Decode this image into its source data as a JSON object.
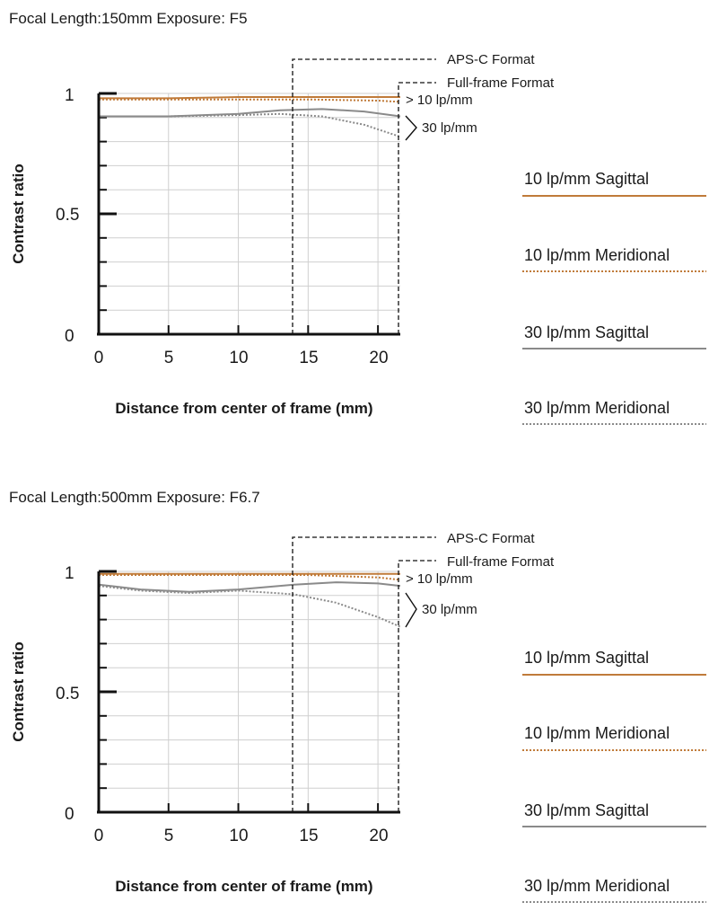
{
  "charts": [
    {
      "title": "Focal Length:150mm  Exposure: F5",
      "chart_data": {
        "type": "line",
        "xlabel": "Distance from center of frame (mm)",
        "ylabel": "Contrast ratio",
        "xlim": [
          0,
          21.6
        ],
        "ylim": [
          0,
          1
        ],
        "x_ticks": [
          "0",
          "5",
          "10",
          "15",
          "20"
        ],
        "y_ticks": [
          "0",
          "0.5",
          "1"
        ],
        "grid": true,
        "series": [
          {
            "name": "10 lp/mm Sagittal",
            "x": [
              0,
              5,
              10,
              15,
              20,
              21.6
            ],
            "values": [
              0.98,
              0.98,
              0.985,
              0.985,
              0.985,
              0.985
            ]
          },
          {
            "name": "10 lp/mm Meridional",
            "x": [
              0,
              5,
              10,
              15,
              20,
              21.6
            ],
            "values": [
              0.975,
              0.975,
              0.975,
              0.975,
              0.97,
              0.965
            ]
          },
          {
            "name": "30 lp/mm Sagittal",
            "x": [
              0,
              5,
              10,
              13,
              16,
              19,
              21.6
            ],
            "values": [
              0.905,
              0.905,
              0.915,
              0.93,
              0.935,
              0.925,
              0.905
            ]
          },
          {
            "name": "30 lp/mm Meridional",
            "x": [
              0,
              5,
              10,
              13,
              16,
              19,
              21.6
            ],
            "values": [
              0.905,
              0.905,
              0.91,
              0.915,
              0.905,
              0.87,
              0.82
            ]
          }
        ],
        "annotations": [
          "APS-C Format",
          "Full-frame Format",
          "> 10 lp/mm",
          "30 lp/mm"
        ],
        "markers": [
          {
            "label": "APS-C Format",
            "x": 13.9
          },
          {
            "label": "Full-frame Format",
            "x": 21.6
          }
        ]
      }
    },
    {
      "title": "Focal Length:500mm  Exposure: F6.7",
      "chart_data": {
        "type": "line",
        "xlabel": "Distance from center of frame (mm)",
        "ylabel": "Contrast ratio",
        "xlim": [
          0,
          21.6
        ],
        "ylim": [
          0,
          1
        ],
        "x_ticks": [
          "0",
          "5",
          "10",
          "15",
          "20"
        ],
        "y_ticks": [
          "0",
          "0.5",
          "1"
        ],
        "grid": true,
        "series": [
          {
            "name": "10 lp/mm Sagittal",
            "x": [
              0,
              5,
              10,
              15,
              20,
              21.6
            ],
            "values": [
              0.99,
              0.99,
              0.99,
              0.99,
              0.99,
              0.99
            ]
          },
          {
            "name": "10 lp/mm Meridional",
            "x": [
              0,
              5,
              10,
              15,
              20,
              21.6
            ],
            "values": [
              0.985,
              0.985,
              0.985,
              0.985,
              0.975,
              0.965
            ]
          },
          {
            "name": "30 lp/mm Sagittal",
            "x": [
              0,
              3,
              6.5,
              10,
              14,
              17,
              20,
              21.6
            ],
            "values": [
              0.945,
              0.925,
              0.915,
              0.925,
              0.945,
              0.955,
              0.95,
              0.94
            ]
          },
          {
            "name": "30 lp/mm Meridional",
            "x": [
              0,
              3,
              6.5,
              10,
              14,
              17,
              20,
              21.6
            ],
            "values": [
              0.94,
              0.92,
              0.91,
              0.92,
              0.905,
              0.87,
              0.81,
              0.77
            ]
          }
        ],
        "annotations": [
          "APS-C Format",
          "Full-frame Format",
          "> 10 lp/mm",
          "30 lp/mm"
        ],
        "markers": [
          {
            "label": "APS-C Format",
            "x": 13.9
          },
          {
            "label": "Full-frame Format",
            "x": 21.6
          }
        ]
      }
    }
  ],
  "legend": [
    {
      "label": "10 lp/mm Sagittal",
      "color": "#c07b3a",
      "style": "solid"
    },
    {
      "label": "10 lp/mm Meridional",
      "color": "#c07b3a",
      "style": "dotted"
    },
    {
      "label": "30 lp/mm Sagittal",
      "color": "#8a8a8a",
      "style": "solid"
    },
    {
      "label": "30 lp/mm Meridional",
      "color": "#8a8a8a",
      "style": "dotted"
    }
  ]
}
